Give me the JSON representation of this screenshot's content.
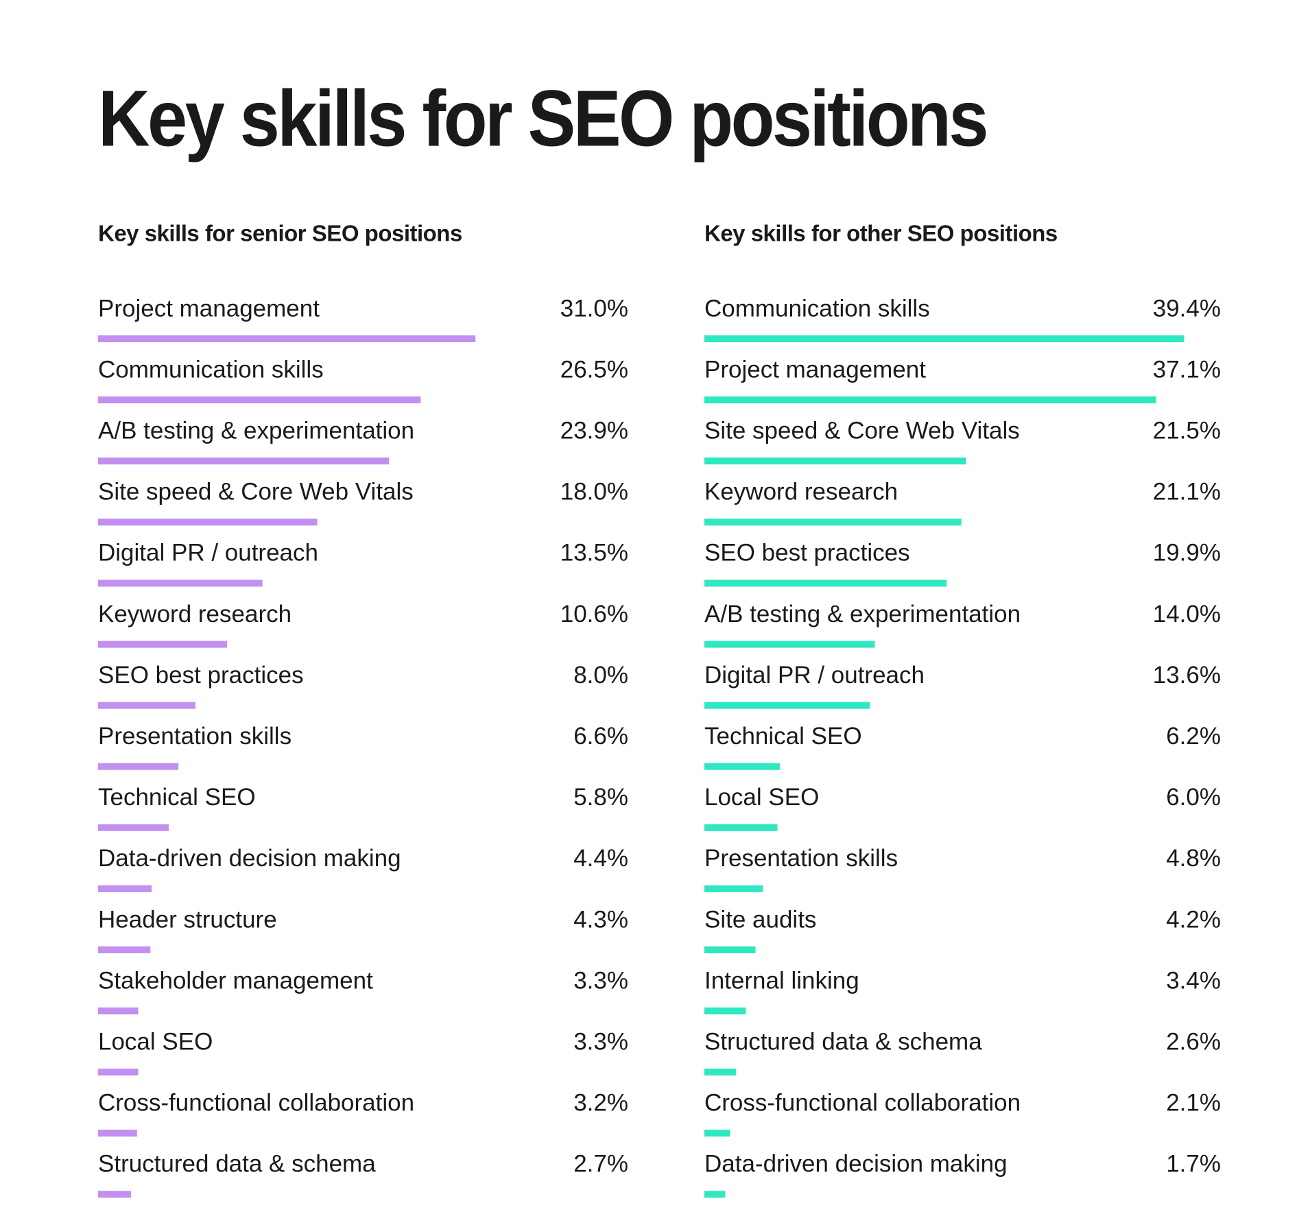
{
  "title": "Key skills for SEO positions",
  "chart_data": [
    {
      "type": "bar",
      "title": "Key skills for senior SEO positions",
      "color": "#c38ff0",
      "categories": [
        "Project management",
        "Communication skills",
        "A/B testing & experimentation",
        "Site speed & Core Web Vitals",
        "Digital PR / outreach",
        "Keyword research",
        "SEO best practices",
        "Presentation skills",
        "Technical SEO",
        "Data-driven decision making",
        "Header structure",
        "Stakeholder management",
        "Local SEO",
        "Cross-functional collaboration",
        "Structured data & schema"
      ],
      "values": [
        31.0,
        26.5,
        23.9,
        18.0,
        13.5,
        10.6,
        8.0,
        6.6,
        5.8,
        4.4,
        4.3,
        3.3,
        3.3,
        3.2,
        2.7
      ],
      "value_labels": [
        "31.0%",
        "26.5%",
        "23.9%",
        "18.0%",
        "13.5%",
        "10.6%",
        "8.0%",
        "6.6%",
        "5.8%",
        "4.4%",
        "4.3%",
        "3.3%",
        "3.3%",
        "3.2%",
        "2.7%"
      ]
    },
    {
      "type": "bar",
      "title": "Key skills for other SEO positions",
      "color": "#2de8c1",
      "categories": [
        "Communication skills",
        "Project management",
        "Site speed & Core Web Vitals",
        "Keyword research",
        "SEO best practices",
        "A/B testing & experimentation",
        "Digital PR / outreach",
        "Technical SEO",
        "Local SEO",
        "Presentation skills",
        "Site audits",
        "Internal linking",
        "Structured data & schema",
        "Cross-functional collaboration",
        "Data-driven decision making"
      ],
      "values": [
        39.4,
        37.1,
        21.5,
        21.1,
        19.9,
        14.0,
        13.6,
        6.2,
        6.0,
        4.8,
        4.2,
        3.4,
        2.6,
        2.1,
        1.7
      ],
      "value_labels": [
        "39.4%",
        "37.1%",
        "21.5%",
        "21.1%",
        "19.9%",
        "14.0%",
        "13.6%",
        "6.2%",
        "6.0%",
        "4.8%",
        "4.2%",
        "3.4%",
        "2.6%",
        "2.1%",
        "1.7%"
      ]
    }
  ]
}
